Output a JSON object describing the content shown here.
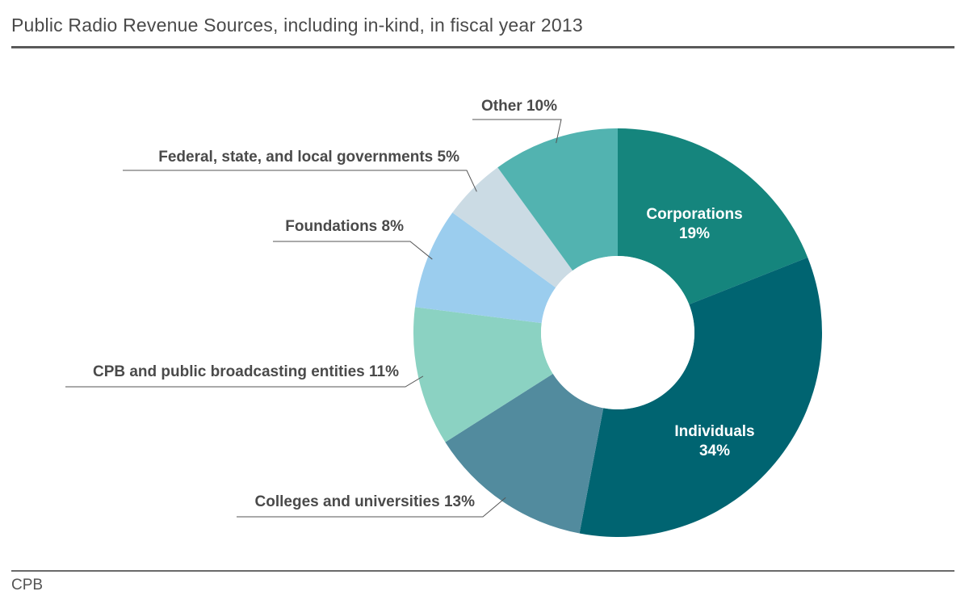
{
  "title": "Public Radio Revenue Sources, including in-kind, in fiscal year 2013",
  "source": "CPB",
  "colors": {
    "corporations": "#15857d",
    "individuals": "#006471",
    "colleges": "#528b9e",
    "cpb": "#8bd2c2",
    "foundations": "#9bcdee",
    "governments": "#cbdbe4",
    "other": "#52b3b0"
  },
  "chart_data": {
    "type": "pie",
    "donut": true,
    "title": "Public Radio Revenue Sources, including in-kind, in fiscal year 2013",
    "slices": [
      {
        "key": "corporations",
        "name": "Corporations",
        "value": 19,
        "label": "19%",
        "label_inside": true
      },
      {
        "key": "individuals",
        "name": "Individuals",
        "value": 34,
        "label": "34%",
        "label_inside": true
      },
      {
        "key": "colleges",
        "name": "Colleges and universities",
        "value": 13,
        "label": "Colleges and universities 13%",
        "label_inside": false
      },
      {
        "key": "cpb",
        "name": "CPB and public broadcasting entities",
        "value": 11,
        "label": "CPB and public broadcasting entities 11%",
        "label_inside": false
      },
      {
        "key": "foundations",
        "name": "Foundations",
        "value": 8,
        "label": "Foundations 8%",
        "label_inside": false
      },
      {
        "key": "governments",
        "name": "Federal, state, and local governments",
        "value": 5,
        "label": "Federal, state, and local governments 5%",
        "label_inside": false
      },
      {
        "key": "other",
        "name": "Other",
        "value": 10,
        "label": "Other 10%",
        "label_inside": false
      }
    ]
  }
}
